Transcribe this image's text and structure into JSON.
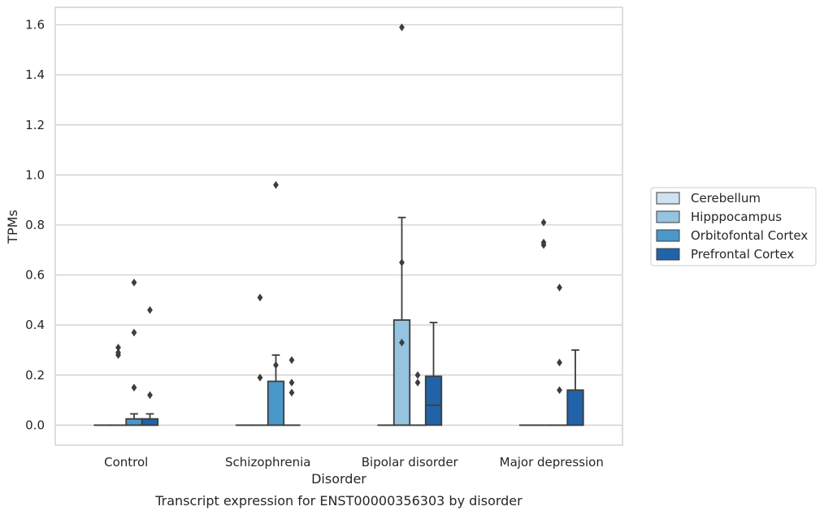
{
  "caption": "Transcript expression for ENST00000356303 by disorder",
  "chart_data": {
    "type": "box",
    "title": "",
    "xlabel": "Disorder",
    "ylabel": "TPMs",
    "categories": [
      "Control",
      "Schizophrenia",
      "Bipolar disorder",
      "Major depression"
    ],
    "ylim": [
      -0.08,
      1.67
    ],
    "yticks": [
      0.0,
      0.2,
      0.4,
      0.6,
      0.8,
      1.0,
      1.2,
      1.4,
      1.6
    ],
    "ytick_labels": [
      "0.0",
      "0.2",
      "0.4",
      "0.6",
      "0.8",
      "1.0",
      "1.2",
      "1.4",
      "1.6"
    ],
    "grid": "horizontal",
    "legend_position": "right",
    "series": [
      {
        "name": "Cerebellum",
        "color": "#d0e1f2",
        "boxes": [
          {
            "q1": 0,
            "median": 0,
            "q3": 0,
            "whislo": 0,
            "whishi": 0,
            "fliers": []
          },
          {
            "q1": 0,
            "median": 0,
            "q3": 0,
            "whislo": 0,
            "whishi": 0,
            "fliers": []
          },
          {
            "q1": 0,
            "median": 0,
            "q3": 0,
            "whislo": 0,
            "whishi": 0,
            "fliers": []
          },
          {
            "q1": 0,
            "median": 0,
            "q3": 0,
            "whislo": 0,
            "whishi": 0,
            "fliers": []
          }
        ]
      },
      {
        "name": "Hipppocampus",
        "color": "#94c4df",
        "boxes": [
          {
            "q1": 0,
            "median": 0,
            "q3": 0,
            "whislo": 0,
            "whishi": 0,
            "fliers": [
              0.28,
              0.31,
              0.29
            ]
          },
          {
            "q1": 0,
            "median": 0,
            "q3": 0,
            "whislo": 0,
            "whishi": 0,
            "fliers": [
              0.19,
              0.51
            ]
          },
          {
            "q1": 0,
            "median": 0,
            "q3": 0.42,
            "whislo": 0,
            "whishi": 0.83,
            "fliers": [
              0.33,
              0.65,
              1.59
            ]
          },
          {
            "q1": 0,
            "median": 0,
            "q3": 0,
            "whislo": 0,
            "whishi": 0,
            "fliers": [
              0.81,
              0.73,
              0.72
            ]
          }
        ]
      },
      {
        "name": "Orbitofontal Cortex",
        "color": "#4a98c9",
        "boxes": [
          {
            "q1": 0,
            "median": 0,
            "q3": 0.025,
            "whislo": 0,
            "whishi": 0.045,
            "fliers": [
              0.15,
              0.37,
              0.57
            ]
          },
          {
            "q1": 0,
            "median": 0,
            "q3": 0.175,
            "whislo": 0,
            "whishi": 0.28,
            "fliers": [
              0.24,
              0.96
            ]
          },
          {
            "q1": 0,
            "median": 0,
            "q3": 0,
            "whislo": 0,
            "whishi": 0,
            "fliers": [
              0.17,
              0.2
            ]
          },
          {
            "q1": 0,
            "median": 0,
            "q3": 0,
            "whislo": 0,
            "whishi": 0,
            "fliers": [
              0.14,
              0.25,
              0.55
            ]
          }
        ]
      },
      {
        "name": "Prefrontal Cortex",
        "color": "#2163a9",
        "boxes": [
          {
            "q1": 0,
            "median": 0,
            "q3": 0.025,
            "whislo": 0,
            "whishi": 0.045,
            "fliers": [
              0.12,
              0.46
            ]
          },
          {
            "q1": 0,
            "median": 0,
            "q3": 0,
            "whislo": 0,
            "whishi": 0,
            "fliers": [
              0.13,
              0.17,
              0.26
            ]
          },
          {
            "q1": 0,
            "median": 0.08,
            "q3": 0.195,
            "whislo": 0,
            "whishi": 0.41,
            "fliers": []
          },
          {
            "q1": 0,
            "median": 0,
            "q3": 0.14,
            "whislo": 0,
            "whishi": 0.3,
            "fliers": []
          }
        ]
      }
    ]
  }
}
